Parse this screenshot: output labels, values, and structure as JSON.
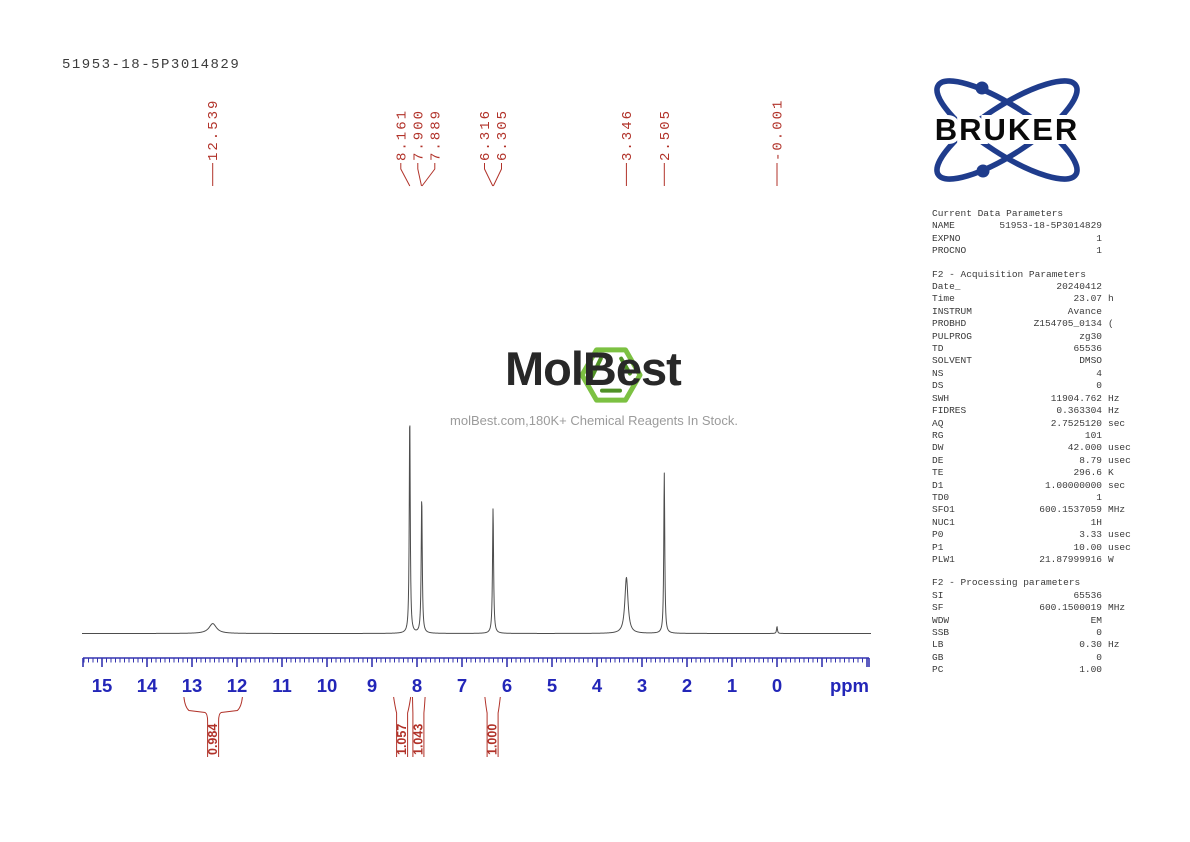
{
  "sample_title": "51953-18-5P3014829",
  "branding": {
    "bruker_logo_text": "BRUKER",
    "bruker_blue": "#1f3c8c",
    "molbest_logo_text": "MolBest",
    "molbest_tagline": "molBest.com,180K+ Chemical Reagents In Stock.",
    "molbest_green": "#7cc142",
    "molbest_green_dark": "#4f9125"
  },
  "colors": {
    "peak_label_red": "#b13229",
    "integral_red": "#b13229",
    "axis_blue_text": "#2326b8",
    "axis_blue_line": "#3434b0",
    "trace_gray": "#4d4d4d"
  },
  "chart_data": {
    "type": "line",
    "title": "1H NMR spectrum",
    "xlabel": "ppm",
    "x_axis": {
      "min": -2.04,
      "max": 15.42,
      "major_ticks": [
        15,
        14,
        13,
        12,
        11,
        10,
        9,
        8,
        7,
        6,
        5,
        4,
        3,
        2,
        1,
        0
      ],
      "minor_step": 0.1,
      "unit_label": "ppm"
    },
    "peak_label_groups": [
      {
        "labels": [
          "12.539"
        ],
        "peaks_ppm": [
          12.539
        ]
      },
      {
        "labels": [
          "8.161",
          "7.900",
          "7.889"
        ],
        "peaks_ppm": [
          8.161,
          7.9,
          7.889
        ]
      },
      {
        "labels": [
          "6.316",
          "6.305"
        ],
        "peaks_ppm": [
          6.316,
          6.305
        ]
      },
      {
        "labels": [
          "3.346"
        ],
        "peaks_ppm": [
          3.346
        ]
      },
      {
        "labels": [
          "2.505"
        ],
        "peaks_ppm": [
          2.505
        ]
      },
      {
        "labels": [
          "-0.001"
        ],
        "peaks_ppm": [
          -0.001
        ]
      }
    ],
    "profile_peaks": [
      {
        "ppm": 12.539,
        "rel_height": 0.045,
        "hwhm_ppm": 0.1
      },
      {
        "ppm": 8.161,
        "rel_height": 1.0,
        "hwhm_ppm": 0.013
      },
      {
        "ppm": 7.895,
        "rel_height": 0.62,
        "hwhm_ppm": 0.014
      },
      {
        "ppm": 6.31,
        "rel_height": 0.57,
        "hwhm_ppm": 0.014
      },
      {
        "ppm": 3.346,
        "rel_height": 0.255,
        "hwhm_ppm": 0.042
      },
      {
        "ppm": 2.505,
        "rel_height": 0.73,
        "hwhm_ppm": 0.013
      },
      {
        "ppm": 0.0,
        "rel_height": 0.032,
        "hwhm_ppm": 0.012
      }
    ],
    "integrals": [
      {
        "value": "0.984",
        "ppm_from": 13.18,
        "ppm_to": 11.88,
        "label_ppm": 12.53
      },
      {
        "value": "1.057",
        "ppm_from": 8.52,
        "ppm_to": 8.14,
        "label_ppm": 8.33
      },
      {
        "value": "1.043",
        "ppm_from": 8.1,
        "ppm_to": 7.82,
        "label_ppm": 7.97
      },
      {
        "value": "1.000",
        "ppm_from": 6.49,
        "ppm_to": 6.15,
        "label_ppm": 6.32
      }
    ]
  },
  "parameters": {
    "sections": [
      {
        "title": "Current Data Parameters",
        "rows": [
          [
            "NAME",
            "51953-18-5P3014829",
            ""
          ],
          [
            "EXPNO",
            "1",
            ""
          ],
          [
            "PROCNO",
            "1",
            ""
          ]
        ]
      },
      {
        "title": "F2 - Acquisition Parameters",
        "rows": [
          [
            "Date_",
            "20240412",
            ""
          ],
          [
            "Time",
            "23.07",
            "h"
          ],
          [
            "INSTRUM",
            "Avance",
            ""
          ],
          [
            "PROBHD",
            "Z154705_0134",
            "("
          ],
          [
            "PULPROG",
            "zg30",
            ""
          ],
          [
            "TD",
            "65536",
            ""
          ],
          [
            "SOLVENT",
            "DMSO",
            ""
          ],
          [
            "NS",
            "4",
            ""
          ],
          [
            "DS",
            "0",
            ""
          ],
          [
            "SWH",
            "11904.762",
            "Hz"
          ],
          [
            "FIDRES",
            "0.363304",
            "Hz"
          ],
          [
            "AQ",
            "2.7525120",
            "sec"
          ],
          [
            "RG",
            "101",
            ""
          ],
          [
            "DW",
            "42.000",
            "usec"
          ],
          [
            "DE",
            "8.79",
            "usec"
          ],
          [
            "TE",
            "296.6",
            "K"
          ],
          [
            "D1",
            "1.00000000",
            "sec"
          ],
          [
            "TD0",
            "1",
            ""
          ],
          [
            "SFO1",
            "600.1537059",
            "MHz"
          ],
          [
            "NUC1",
            "1H",
            ""
          ],
          [
            "P0",
            "3.33",
            "usec"
          ],
          [
            "P1",
            "10.00",
            "usec"
          ],
          [
            "PLW1",
            "21.87999916",
            "W"
          ]
        ]
      },
      {
        "title": "F2 - Processing parameters",
        "rows": [
          [
            "SI",
            "65536",
            ""
          ],
          [
            "SF",
            "600.1500019",
            "MHz"
          ],
          [
            "WDW",
            "EM",
            ""
          ],
          [
            "SSB",
            "0",
            ""
          ],
          [
            "LB",
            "0.30",
            "Hz"
          ],
          [
            "GB",
            "0",
            ""
          ],
          [
            "PC",
            "1.00",
            ""
          ]
        ]
      }
    ]
  }
}
